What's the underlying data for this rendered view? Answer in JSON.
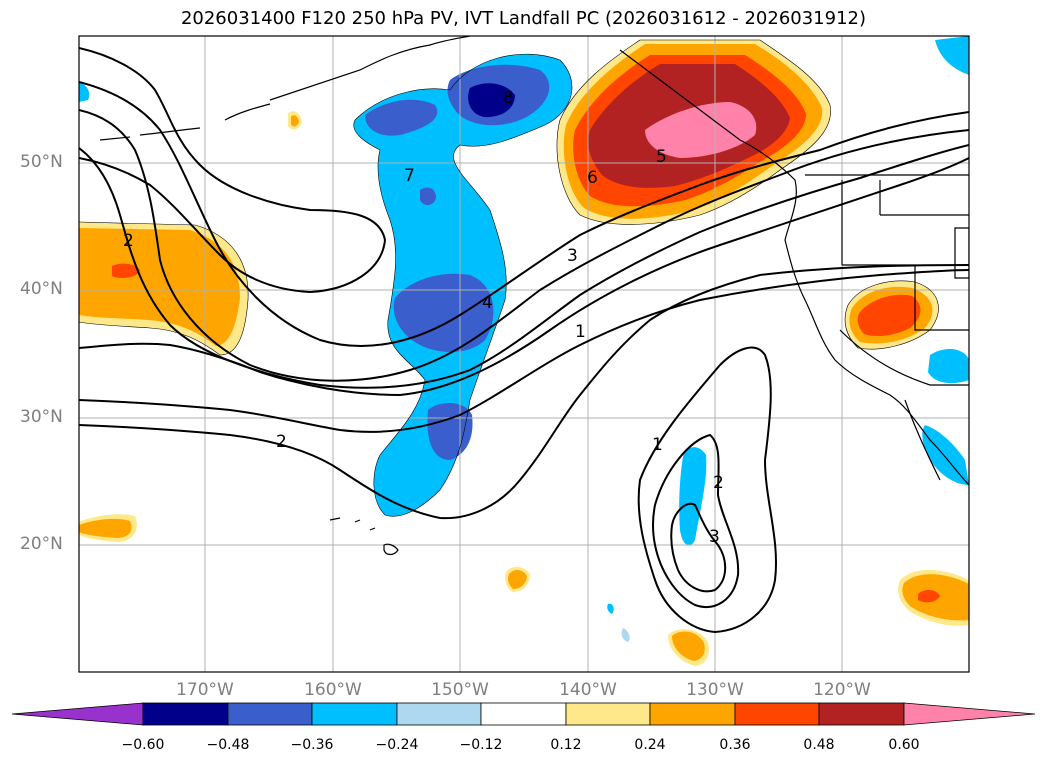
{
  "title": "2026031400 F120 250 hPa PV, IVT Landfall PC (2026031612 - 2026031912)",
  "lat_labels": [
    "50°N",
    "40°N",
    "30°N",
    "20°N"
  ],
  "lon_labels": [
    "170°W",
    "160°W",
    "150°W",
    "140°W",
    "130°W",
    "120°W"
  ],
  "contour_labels": [
    "8",
    "7",
    "6",
    "5",
    "4",
    "3",
    "2",
    "1",
    "2",
    "1",
    "2",
    "3"
  ],
  "colorbar": {
    "ticks": [
      "−0.60",
      "−0.48",
      "−0.36",
      "−0.24",
      "−0.12",
      "0.12",
      "0.24",
      "0.36",
      "0.48",
      "0.60"
    ],
    "colors": [
      "#9932cc",
      "#00008b",
      "#3a5fcd",
      "#00bfff",
      "#add8f0",
      "#ffffff",
      "#ffe88a",
      "#ffa500",
      "#ff4500",
      "#b22222",
      "#ff82ab"
    ]
  }
}
